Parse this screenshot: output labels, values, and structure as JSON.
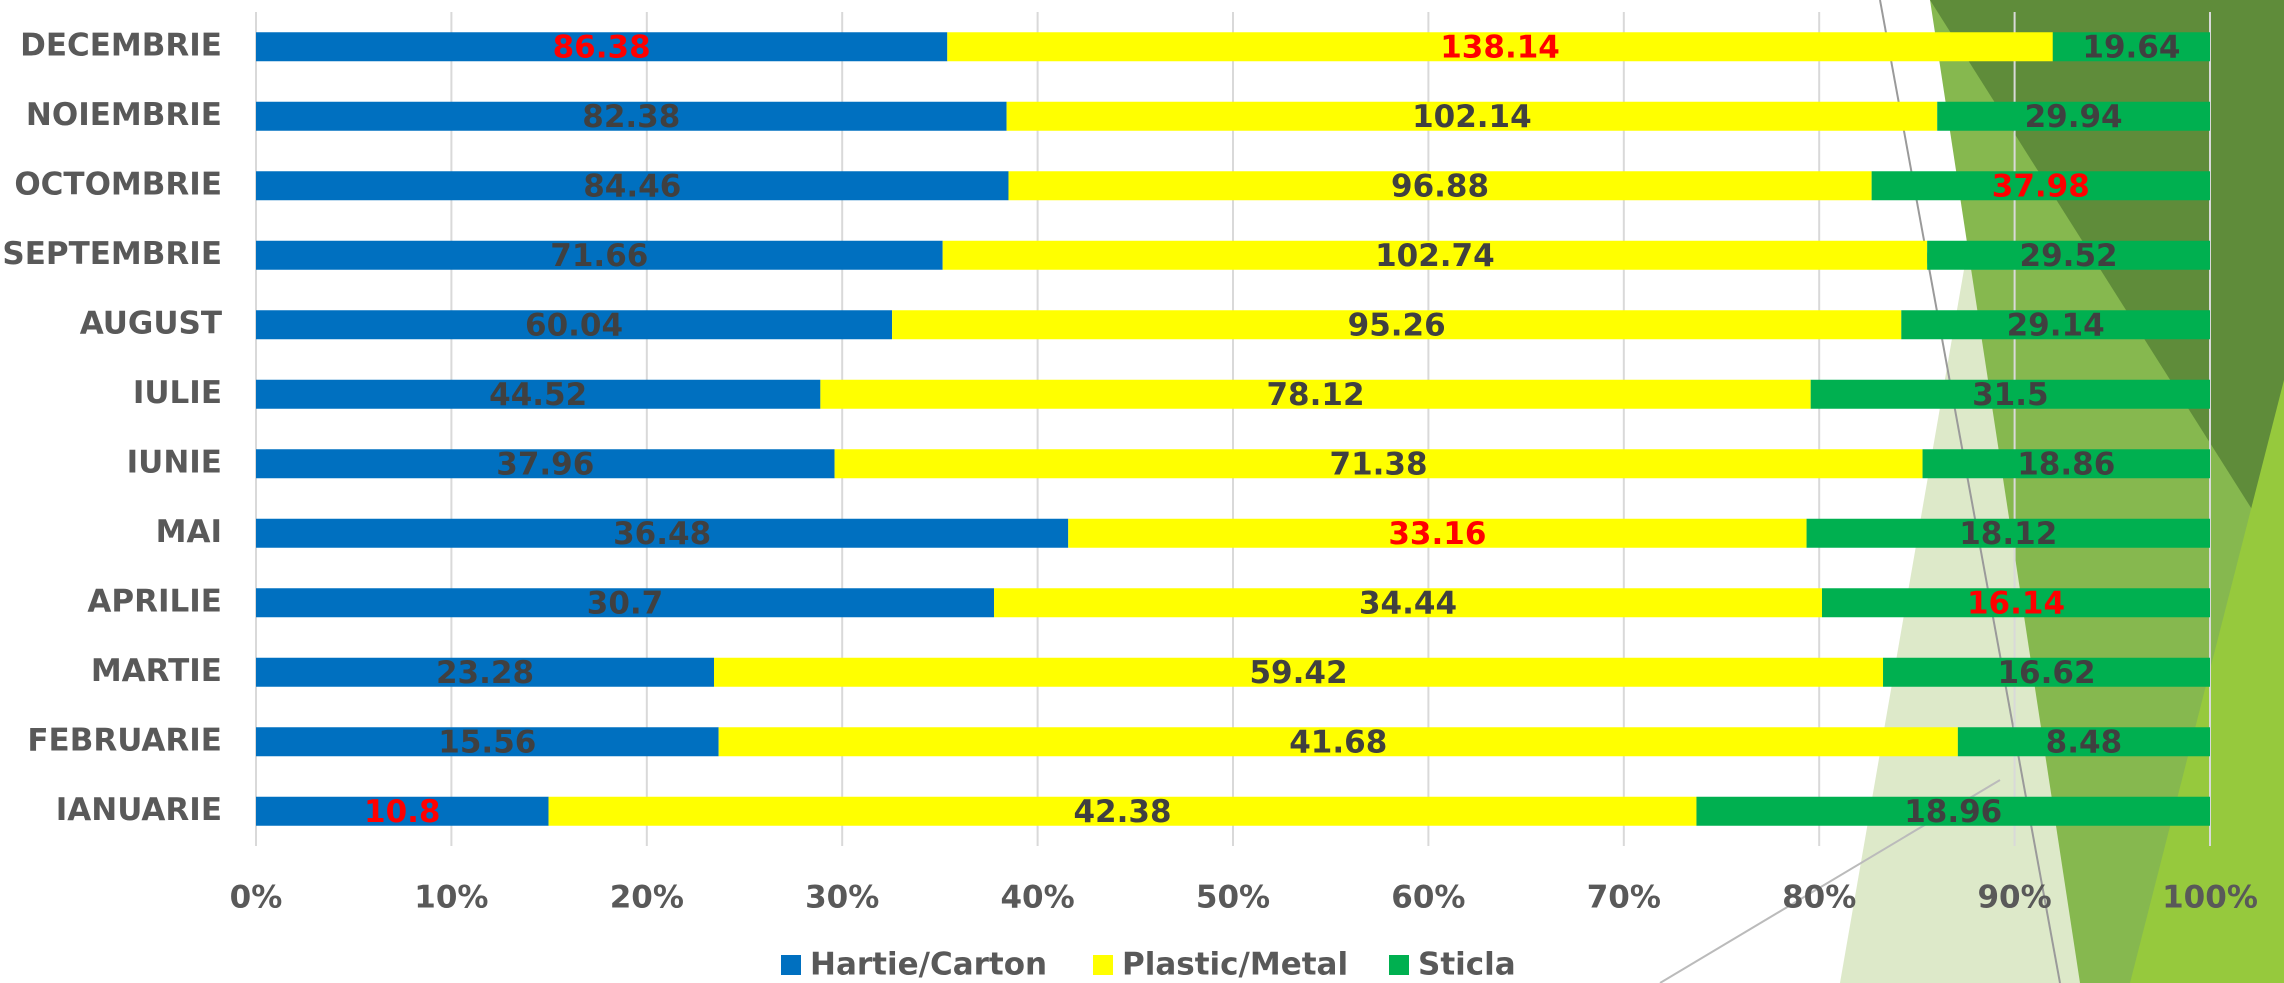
{
  "chart_data": {
    "type": "stacked-bar-percent",
    "categories": [
      "DECEMBRIE",
      "NOIEMBRIE",
      "OCTOMBRIE",
      "SEPTEMBRIE",
      "AUGUST",
      "IULIE",
      "IUNIE",
      "MAI",
      "APRILIE",
      "MARTIE",
      "FEBRUARIE",
      "IANUARIE"
    ],
    "series": [
      {
        "name": "Hartie/Carton",
        "color": "#0070c0",
        "values": [
          86.38,
          82.38,
          84.46,
          71.66,
          60.04,
          44.52,
          37.96,
          36.48,
          30.7,
          23.28,
          15.56,
          10.8
        ],
        "highlight": [
          0,
          11
        ]
      },
      {
        "name": "Plastic/Metal",
        "color": "#ffff00",
        "values": [
          138.14,
          102.14,
          96.88,
          102.74,
          95.26,
          78.12,
          71.38,
          33.16,
          34.44,
          59.42,
          41.68,
          42.38
        ],
        "highlight": [
          0,
          7
        ]
      },
      {
        "name": "Sticla",
        "color": "#00b050",
        "values": [
          19.64,
          29.94,
          37.98,
          29.52,
          29.14,
          31.5,
          18.86,
          18.12,
          16.14,
          16.62,
          8.48,
          18.96
        ],
        "highlight": [
          2,
          8
        ]
      }
    ],
    "highlight_color": "#ff0000",
    "xlim": [
      0,
      100
    ],
    "xticks": [
      {
        "value": 0,
        "label": "0%"
      },
      {
        "value": 10,
        "label": "10%"
      },
      {
        "value": 20,
        "label": "20%"
      },
      {
        "value": 30,
        "label": "30%"
      },
      {
        "value": 40,
        "label": "40%"
      },
      {
        "value": 50,
        "label": "50%"
      },
      {
        "value": 60,
        "label": "60%"
      },
      {
        "value": 70,
        "label": "70%"
      },
      {
        "value": 80,
        "label": "80%"
      },
      {
        "value": 90,
        "label": "90%"
      },
      {
        "value": 100,
        "label": "100%"
      }
    ],
    "grid": true,
    "legend": "bottom"
  }
}
